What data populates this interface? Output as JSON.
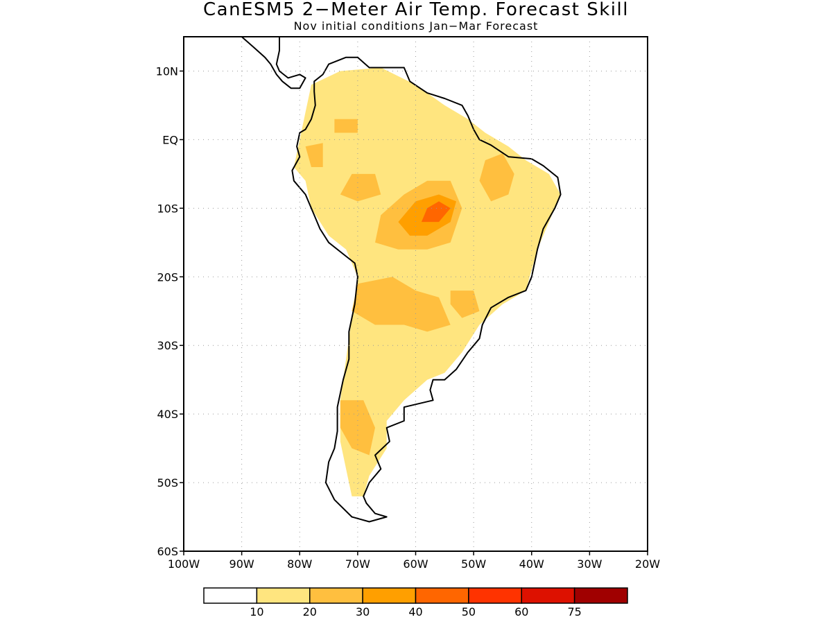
{
  "title": "CanESM5 2−Meter Air Temp. Forecast Skill",
  "subtitle": "Nov initial conditions  Jan−Mar Forecast",
  "map": {
    "lon_range": [
      -100,
      -20
    ],
    "lat_range": [
      -60,
      15
    ],
    "lat_labels": [
      {
        "value": 10,
        "text": "10N"
      },
      {
        "value": 0,
        "text": "EQ"
      },
      {
        "value": -10,
        "text": "10S"
      },
      {
        "value": -20,
        "text": "20S"
      },
      {
        "value": -30,
        "text": "30S"
      },
      {
        "value": -40,
        "text": "40S"
      },
      {
        "value": -50,
        "text": "50S"
      },
      {
        "value": -60,
        "text": "60S"
      }
    ],
    "lon_labels": [
      {
        "value": -100,
        "text": "100W"
      },
      {
        "value": -90,
        "text": "90W"
      },
      {
        "value": -80,
        "text": "80W"
      },
      {
        "value": -70,
        "text": "70W"
      },
      {
        "value": -60,
        "text": "60W"
      },
      {
        "value": -50,
        "text": "50W"
      },
      {
        "value": -40,
        "text": "40W"
      },
      {
        "value": -30,
        "text": "30W"
      },
      {
        "value": -20,
        "text": "20W"
      }
    ],
    "grid": "dotted"
  },
  "skill_regions": [
    {
      "level": 1,
      "points": [
        [
          -78,
          8
        ],
        [
          -73,
          10
        ],
        [
          -66,
          10.5
        ],
        [
          -60,
          8
        ],
        [
          -55,
          5
        ],
        [
          -51,
          3
        ],
        [
          -48,
          1
        ],
        [
          -44,
          -1
        ],
        [
          -41,
          -3
        ],
        [
          -37,
          -5
        ],
        [
          -35,
          -8
        ],
        [
          -37,
          -12
        ],
        [
          -39,
          -16
        ],
        [
          -41,
          -22
        ],
        [
          -45,
          -24
        ],
        [
          -49,
          -27
        ],
        [
          -52,
          -31
        ],
        [
          -55,
          -34
        ],
        [
          -58,
          -35
        ],
        [
          -62,
          -38
        ],
        [
          -65,
          -41
        ],
        [
          -65,
          -45
        ],
        [
          -68,
          -49
        ],
        [
          -69,
          -52
        ],
        [
          -71,
          -52
        ],
        [
          -72,
          -48
        ],
        [
          -73,
          -44
        ],
        [
          -73,
          -38
        ],
        [
          -72,
          -32
        ],
        [
          -71,
          -26
        ],
        [
          -70,
          -20
        ],
        [
          -72,
          -16
        ],
        [
          -75,
          -14
        ],
        [
          -78,
          -10
        ],
        [
          -79,
          -6
        ],
        [
          -81,
          -4
        ],
        [
          -80,
          0
        ],
        [
          -79,
          4
        ]
      ]
    },
    {
      "level": 2,
      "points": [
        [
          -71,
          -5
        ],
        [
          -67,
          -5
        ],
        [
          -66,
          -8
        ],
        [
          -70,
          -9
        ],
        [
          -73,
          -8
        ]
      ]
    },
    {
      "level": 2,
      "points": [
        [
          -66,
          -11
        ],
        [
          -62,
          -8
        ],
        [
          -58,
          -6
        ],
        [
          -54,
          -6
        ],
        [
          -52,
          -10
        ],
        [
          -54,
          -15
        ],
        [
          -58,
          -16
        ],
        [
          -63,
          -16
        ],
        [
          -67,
          -15
        ]
      ]
    },
    {
      "level": 3,
      "points": [
        [
          -63,
          -12
        ],
        [
          -60,
          -9
        ],
        [
          -56,
          -8
        ],
        [
          -53,
          -9
        ],
        [
          -54,
          -12
        ],
        [
          -58,
          -14
        ],
        [
          -61,
          -14
        ]
      ]
    },
    {
      "level": 4,
      "points": [
        [
          -58,
          -10
        ],
        [
          -56,
          -9
        ],
        [
          -54,
          -10
        ],
        [
          -56,
          -12
        ],
        [
          -59,
          -12
        ]
      ]
    },
    {
      "level": 2,
      "points": [
        [
          -48,
          -3
        ],
        [
          -45,
          -2
        ],
        [
          -43,
          -5
        ],
        [
          -44,
          -8
        ],
        [
          -47,
          -9
        ],
        [
          -49,
          -6
        ]
      ]
    },
    {
      "level": 2,
      "points": [
        [
          -70,
          -21
        ],
        [
          -64,
          -20
        ],
        [
          -60,
          -22
        ],
        [
          -56,
          -23
        ],
        [
          -54,
          -27
        ],
        [
          -58,
          -28
        ],
        [
          -62,
          -27
        ],
        [
          -67,
          -27
        ],
        [
          -71,
          -25
        ]
      ]
    },
    {
      "level": 2,
      "points": [
        [
          -54,
          -22
        ],
        [
          -50,
          -22
        ],
        [
          -49,
          -25
        ],
        [
          -52,
          -26
        ],
        [
          -54,
          -24
        ]
      ]
    },
    {
      "level": 2,
      "points": [
        [
          -73,
          -38
        ],
        [
          -69,
          -38
        ],
        [
          -67,
          -42
        ],
        [
          -68,
          -46
        ],
        [
          -71,
          -45
        ],
        [
          -73,
          -42
        ]
      ]
    },
    {
      "level": 2,
      "points": [
        [
          -79,
          -1
        ],
        [
          -76,
          -0.5
        ],
        [
          -76,
          -4
        ],
        [
          -78,
          -4
        ]
      ]
    },
    {
      "level": 2,
      "points": [
        [
          -74,
          3
        ],
        [
          -70,
          3
        ],
        [
          -70,
          1
        ],
        [
          -74,
          1
        ]
      ]
    }
  ],
  "colorbar": {
    "tick_labels": [
      "10",
      "20",
      "30",
      "40",
      "50",
      "60",
      "75"
    ],
    "colors": [
      "#ffffff",
      "#ffe57f",
      "#ffbf3f",
      "#ff9f00",
      "#ff6600",
      "#ff3300",
      "#dd1100",
      "#a00000"
    ]
  }
}
